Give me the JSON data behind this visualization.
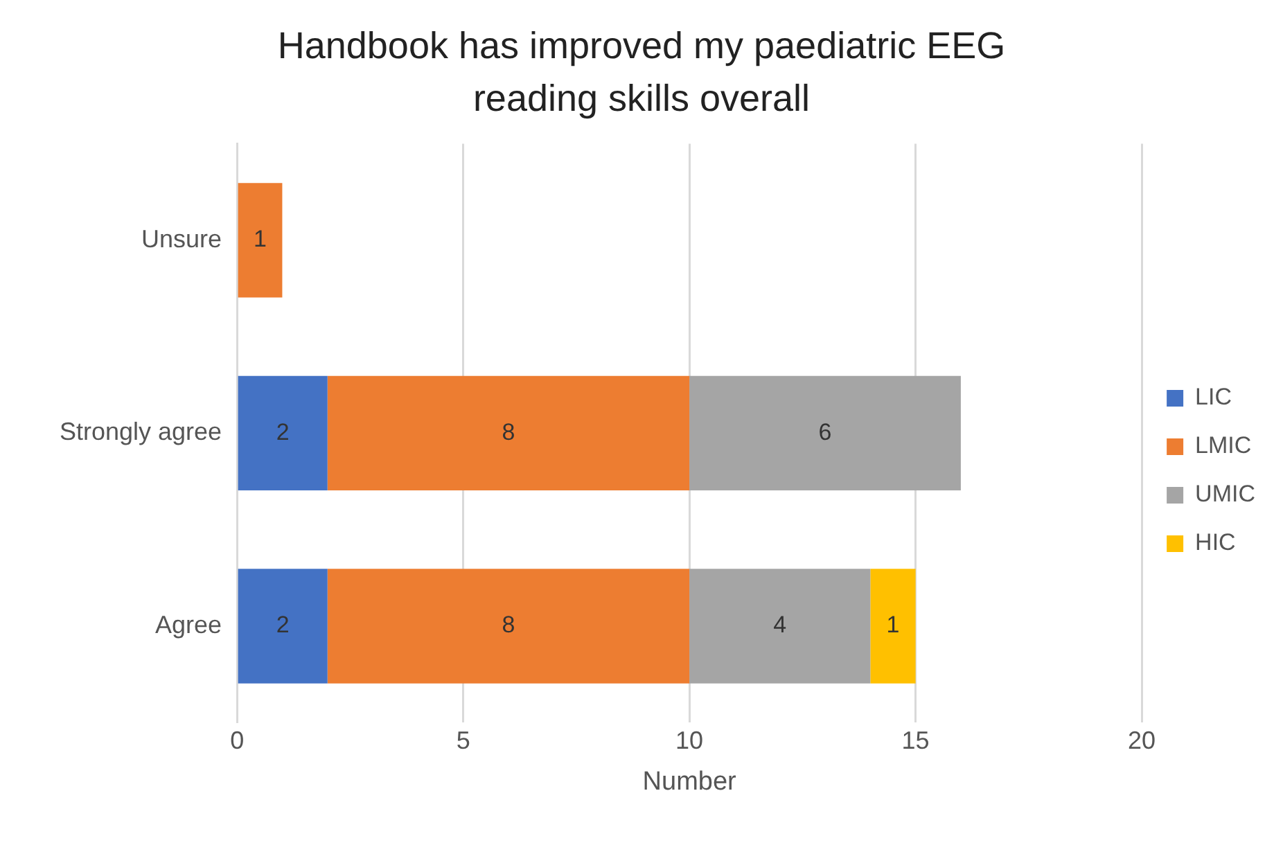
{
  "chart_data": {
    "type": "bar",
    "orientation": "horizontal",
    "stacked": true,
    "title": "Handbook has improved my paediatric EEG reading skills overall",
    "xlabel": "Number",
    "categories": [
      "Unsure",
      "Strongly agree",
      "Agree"
    ],
    "series": [
      {
        "name": "LIC",
        "color": "#4472c4",
        "values": [
          null,
          2,
          2
        ]
      },
      {
        "name": "LMIC",
        "color": "#ed7d31",
        "values": [
          1,
          8,
          8
        ]
      },
      {
        "name": "UMIC",
        "color": "#a5a5a5",
        "values": [
          null,
          6,
          4
        ]
      },
      {
        "name": "HIC",
        "color": "#ffc000",
        "values": [
          null,
          null,
          1
        ]
      }
    ],
    "xlim": [
      0,
      20
    ],
    "xticks": [
      0,
      5,
      10,
      15,
      20
    ],
    "grid": "x",
    "legend": "right",
    "data_labels": true
  }
}
